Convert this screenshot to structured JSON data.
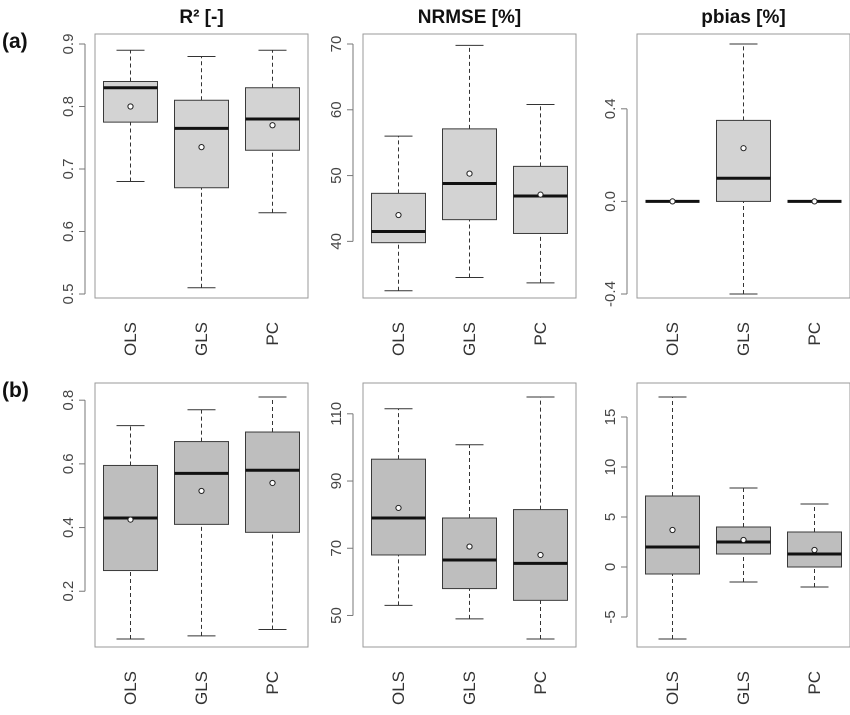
{
  "rows": [
    {
      "label": "(a)",
      "box_color": "#d3d3d3"
    },
    {
      "label": "(b)",
      "box_color": "#bebebe"
    }
  ],
  "titles": [
    "R² [-]",
    "NRMSE [%]",
    "pbias [%]"
  ],
  "chart_data": [
    {
      "type": "box",
      "row": 0,
      "col": 0,
      "title": "R² [-]",
      "categories": [
        "OLS",
        "GLS",
        "PC"
      ],
      "ylim": [
        0.5,
        0.9
      ],
      "yticks": [
        "0.5",
        "0.6",
        "0.7",
        "0.8",
        "0.9"
      ],
      "boxes": [
        {
          "min": 0.68,
          "q1": 0.775,
          "median": 0.83,
          "q3": 0.84,
          "max": 0.89,
          "mean": 0.8
        },
        {
          "min": 0.51,
          "q1": 0.67,
          "median": 0.765,
          "q3": 0.81,
          "max": 0.88,
          "mean": 0.735
        },
        {
          "min": 0.63,
          "q1": 0.73,
          "median": 0.78,
          "q3": 0.83,
          "max": 0.89,
          "mean": 0.77
        }
      ]
    },
    {
      "type": "box",
      "row": 0,
      "col": 1,
      "title": "NRMSE [%]",
      "categories": [
        "OLS",
        "GLS",
        "PC"
      ],
      "ylim": [
        32,
        70
      ],
      "yticks": [
        "40",
        "50",
        "60",
        "70"
      ],
      "boxes": [
        {
          "min": 32.5,
          "q1": 39.8,
          "median": 41.5,
          "q3": 47.3,
          "max": 56.0,
          "mean": 44.0
        },
        {
          "min": 34.5,
          "q1": 43.3,
          "median": 48.8,
          "q3": 57.1,
          "max": 69.8,
          "mean": 50.3
        },
        {
          "min": 33.7,
          "q1": 41.2,
          "median": 46.9,
          "q3": 51.4,
          "max": 60.8,
          "mean": 47.1
        }
      ]
    },
    {
      "type": "box",
      "row": 0,
      "col": 2,
      "title": "pbias [%]",
      "categories": [
        "OLS",
        "GLS",
        "PC"
      ],
      "ylim": [
        -0.4,
        0.68
      ],
      "yticks": [
        "-0.4",
        "0.0",
        "0.4"
      ],
      "boxes": [
        {
          "min": 0.0,
          "q1": 0.0,
          "median": 0.0,
          "q3": 0.0,
          "max": 0.0,
          "mean": 0.0
        },
        {
          "min": -0.4,
          "q1": 0.0,
          "median": 0.1,
          "q3": 0.35,
          "max": 0.68,
          "mean": 0.23
        },
        {
          "min": 0.0,
          "q1": 0.0,
          "median": 0.0,
          "q3": 0.0,
          "max": 0.0,
          "mean": 0.0
        }
      ]
    },
    {
      "type": "box",
      "row": 1,
      "col": 0,
      "categories": [
        "OLS",
        "GLS",
        "PC"
      ],
      "ylim": [
        0.05,
        0.81
      ],
      "yticks": [
        "0.2",
        "0.4",
        "0.6",
        "0.8"
      ],
      "boxes": [
        {
          "min": 0.05,
          "q1": 0.265,
          "median": 0.43,
          "q3": 0.595,
          "max": 0.72,
          "mean": 0.425
        },
        {
          "min": 0.06,
          "q1": 0.41,
          "median": 0.57,
          "q3": 0.67,
          "max": 0.77,
          "mean": 0.515
        },
        {
          "min": 0.08,
          "q1": 0.385,
          "median": 0.58,
          "q3": 0.7,
          "max": 0.81,
          "mean": 0.54
        }
      ]
    },
    {
      "type": "box",
      "row": 1,
      "col": 1,
      "categories": [
        "OLS",
        "GLS",
        "PC"
      ],
      "ylim": [
        43,
        115
      ],
      "yticks": [
        "50",
        "70",
        "90",
        "110"
      ],
      "boxes": [
        {
          "min": 53,
          "q1": 68,
          "median": 79,
          "q3": 96.5,
          "max": 111.5,
          "mean": 82
        },
        {
          "min": 49,
          "q1": 58,
          "median": 66.5,
          "q3": 79,
          "max": 100.8,
          "mean": 70.5
        },
        {
          "min": 43,
          "q1": 54.5,
          "median": 65.5,
          "q3": 81.5,
          "max": 115,
          "mean": 68
        }
      ]
    },
    {
      "type": "box",
      "row": 1,
      "col": 2,
      "categories": [
        "OLS",
        "GLS",
        "PC"
      ],
      "ylim": [
        -7.2,
        17
      ],
      "yticks": [
        "-5",
        "0",
        "5",
        "10",
        "15"
      ],
      "boxes": [
        {
          "min": -7.2,
          "q1": -0.7,
          "median": 2.0,
          "q3": 7.1,
          "max": 17.0,
          "mean": 3.7
        },
        {
          "min": -1.5,
          "q1": 1.3,
          "median": 2.5,
          "q3": 4.0,
          "max": 7.9,
          "mean": 2.7
        },
        {
          "min": -2.0,
          "q1": 0.0,
          "median": 1.3,
          "q3": 3.5,
          "max": 6.3,
          "mean": 1.7
        }
      ]
    }
  ]
}
